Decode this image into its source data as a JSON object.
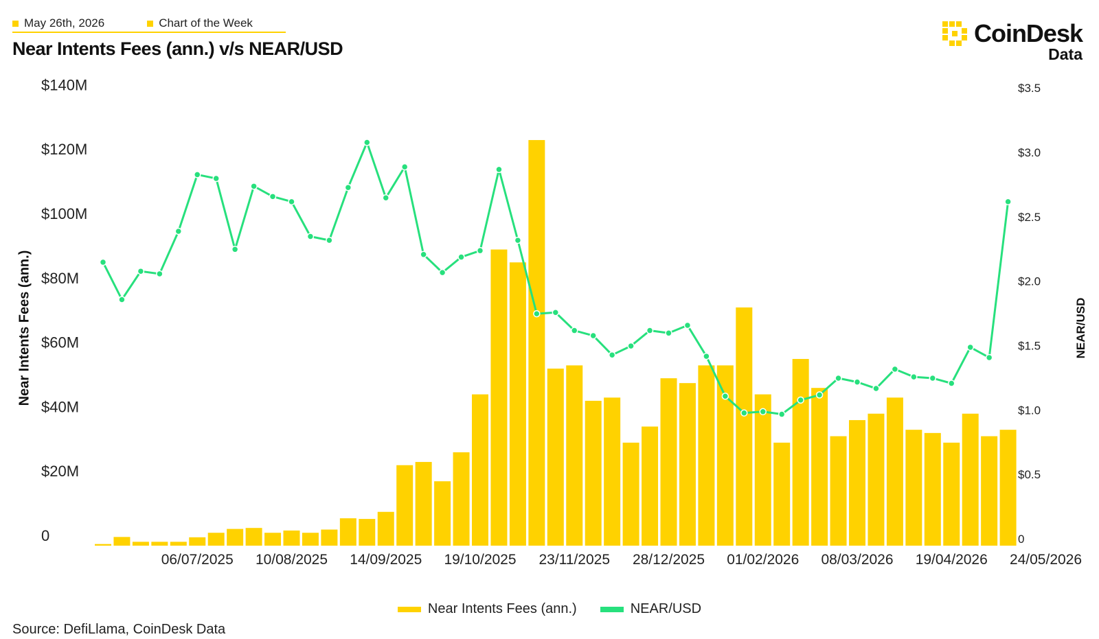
{
  "header": {
    "date_tag": "May 26th, 2026",
    "series_tag": "Chart of the Week",
    "title": "Near Intents Fees (ann.) v/s NEAR/USD"
  },
  "brand": {
    "name": "CoinDesk",
    "sub": "Data",
    "icon": "coindesk-logo-icon"
  },
  "colors": {
    "fees": "#ffd200",
    "price": "#27e07d",
    "accent": "#ffd200"
  },
  "source": "Source: DefiLlama, CoinDesk Data",
  "chart_data": {
    "type": "bar+line",
    "title": "Near Intents Fees (ann.) v/s NEAR/USD",
    "ylabel": "Near Intents Fees (ann.)",
    "y2label": "NEAR/USD",
    "ylim": [
      0,
      140
    ],
    "y2lim": [
      0,
      3.5
    ],
    "yticks": [
      "0",
      "$20M",
      "$40M",
      "$60M",
      "$80M",
      "$100M",
      "$120M",
      "$140M"
    ],
    "y2ticks": [
      "0",
      "$0.5",
      "$1.0",
      "$1.5",
      "$2.0",
      "$2.5",
      "$3.0",
      "$3.5"
    ],
    "x_start": "2025-06-01",
    "x_step_days": 7,
    "xtick_labels": [
      "06/07/2025",
      "10/08/2025",
      "14/09/2025",
      "19/10/2025",
      "23/11/2025",
      "28/12/2025",
      "01/02/2026",
      "08/03/2026",
      "19/04/2026",
      "24/05/2026"
    ],
    "xtick_positions": [
      5,
      10,
      15,
      20,
      25,
      30,
      35,
      40,
      45,
      50
    ],
    "legend": "bottom-center",
    "series": [
      {
        "name": "Near Intents Fees (ann.)",
        "kind": "bar",
        "unit": "$M",
        "values": [
          0.5,
          2.7,
          1.2,
          1.2,
          1.2,
          2.6,
          4.0,
          5.2,
          5.5,
          4.0,
          4.7,
          4.0,
          5.0,
          8.5,
          8.3,
          10.5,
          25.0,
          26.0,
          20.0,
          29.0,
          47.0,
          92.0,
          88.0,
          126.0,
          55.0,
          56.0,
          45.0,
          46.0,
          32.0,
          37.0,
          52.0,
          50.5,
          56.0,
          56.0,
          74.0,
          47.0,
          32.0,
          58.0,
          49.0,
          34.0,
          39.0,
          41.0,
          46.0,
          36.0,
          35.0,
          32.0,
          41.0,
          34.0,
          36.0
        ]
      },
      {
        "name": "NEAR/USD",
        "kind": "line",
        "unit": "$",
        "values": [
          2.2,
          1.91,
          2.13,
          2.11,
          2.44,
          2.88,
          2.85,
          2.3,
          2.79,
          2.71,
          2.67,
          2.4,
          2.37,
          2.78,
          3.13,
          2.7,
          2.94,
          2.26,
          2.12,
          2.24,
          2.29,
          2.92,
          2.37,
          1.8,
          1.81,
          1.67,
          1.63,
          1.48,
          1.55,
          1.67,
          1.65,
          1.71,
          1.47,
          1.16,
          1.03,
          1.04,
          1.02,
          1.13,
          1.17,
          1.3,
          1.27,
          1.22,
          1.37,
          1.31,
          1.3,
          1.26,
          1.54,
          1.46,
          2.67
        ]
      }
    ]
  }
}
